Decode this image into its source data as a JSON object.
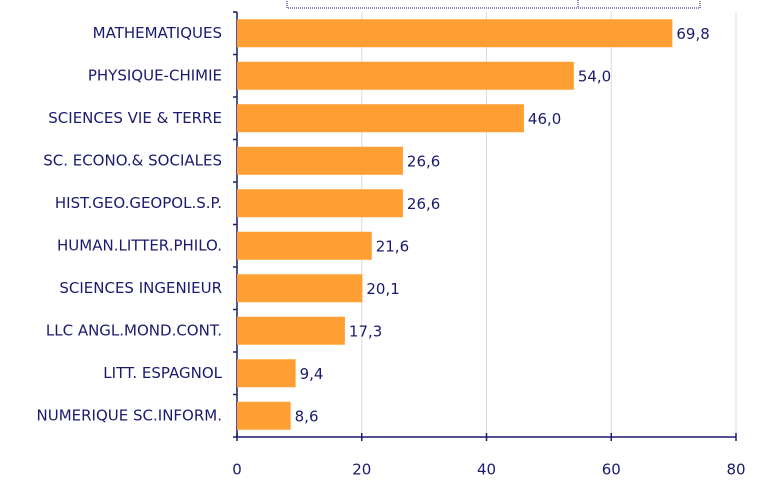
{
  "chart_data": {
    "type": "bar",
    "orientation": "horizontal",
    "categories": [
      "MATHEMATIQUES",
      "PHYSIQUE-CHIMIE",
      "SCIENCES VIE & TERRE",
      "SC. ECONO.& SOCIALES",
      "HIST.GEO.GEOPOL.S.P.",
      "HUMAN.LITTER.PHILO.",
      "SCIENCES INGENIEUR",
      "LLC ANGL.MOND.CONT.",
      "LITT. ESPAGNOL",
      "NUMERIQUE SC.INFORM."
    ],
    "values": [
      69.8,
      54.0,
      46.0,
      26.6,
      26.6,
      21.6,
      20.1,
      17.3,
      9.4,
      8.6
    ],
    "value_labels": [
      "69,8",
      "54,0",
      "46,0",
      "26,6",
      "26,6",
      "21,6",
      "20,1",
      "17,3",
      "9,4",
      "8,6"
    ],
    "color": "#ff9f33",
    "xlim": [
      0,
      80
    ],
    "xticks": [
      0,
      20,
      40,
      60,
      80
    ],
    "grid": true
  }
}
